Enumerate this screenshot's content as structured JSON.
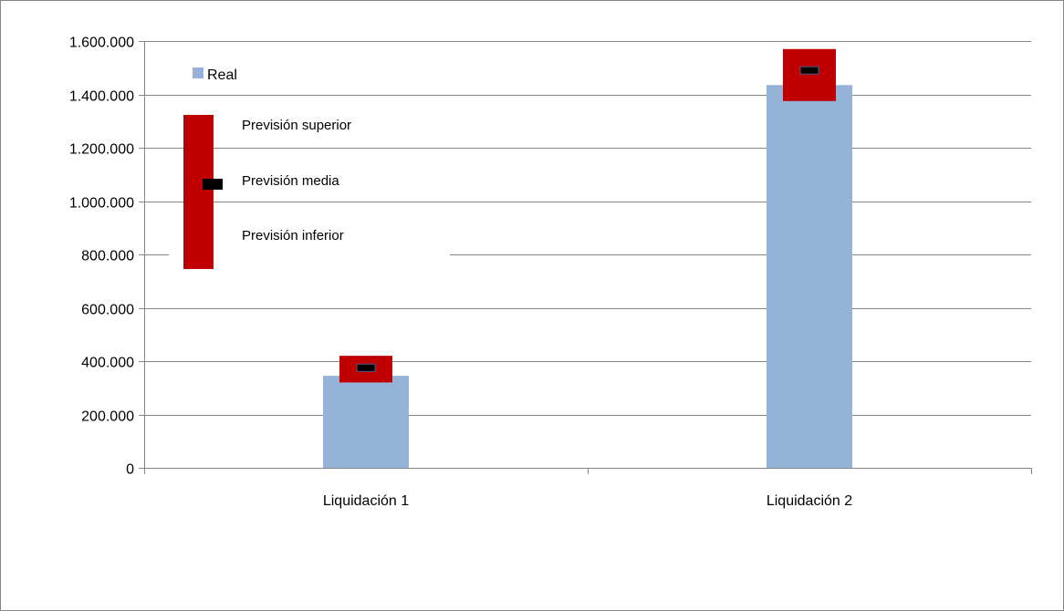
{
  "chart_data": {
    "type": "bar",
    "categories": [
      "Liquidación 1",
      "Liquidación 2"
    ],
    "series": [
      {
        "name": "Real",
        "values": [
          345000,
          1435000
        ],
        "color": "#95b3d7"
      }
    ],
    "forecast": [
      {
        "lower": 320000,
        "mean": 375000,
        "upper": 420000
      },
      {
        "lower": 1375000,
        "mean": 1490000,
        "upper": 1570000
      }
    ],
    "forecast_color": "#c00000",
    "mean_marker_color": "#000000",
    "ylim": [
      0,
      1600000
    ],
    "y_ticks": [
      {
        "value": 0,
        "label": "0"
      },
      {
        "value": 200000,
        "label": "200.000"
      },
      {
        "value": 400000,
        "label": "400.000"
      },
      {
        "value": 600000,
        "label": "600.000"
      },
      {
        "value": 800000,
        "label": "800.000"
      },
      {
        "value": 1000000,
        "label": "1.000.000"
      },
      {
        "value": 1200000,
        "label": "1.200.000"
      },
      {
        "value": 1400000,
        "label": "1.400.000"
      },
      {
        "value": 1600000,
        "label": "1.600.000"
      }
    ],
    "grid": true,
    "legend": {
      "placement": "top-left",
      "real_label": "Real",
      "forecast_upper_label": "Previsión superior",
      "forecast_mean_label": "Previsión media",
      "forecast_lower_label": "Previsión inferior"
    },
    "title": "",
    "xlabel": "",
    "ylabel": ""
  }
}
